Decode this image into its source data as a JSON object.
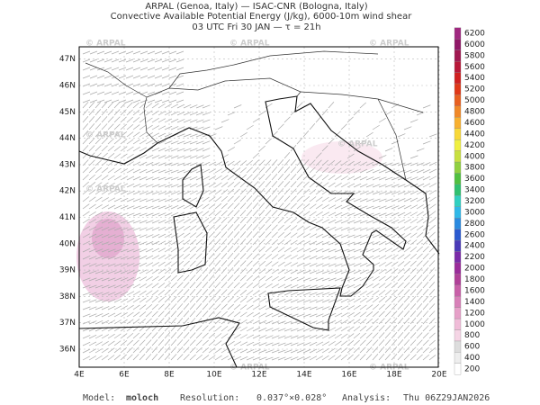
{
  "header": {
    "line1": "ARPAL (Genoa, Italy)  —  ISAC-CNR (Bologna, Italy)",
    "line2": "Convective Available Potential Energy (J/kg), 6000-10m wind shear",
    "line3": "03 UTC Fri 30 JAN  —  τ = 21h"
  },
  "watermark": "© ARPAL",
  "map": {
    "lat_labels": [
      "36N",
      "37N",
      "38N",
      "39N",
      "40N",
      "41N",
      "42N",
      "43N",
      "44N",
      "45N",
      "46N",
      "47N"
    ],
    "lon_labels": [
      "4E",
      "6E",
      "8E",
      "10E",
      "12E",
      "14E",
      "16E",
      "18E",
      "20E"
    ]
  },
  "colorbar": {
    "levels": [
      200,
      400,
      600,
      800,
      1000,
      1200,
      1400,
      1600,
      1800,
      2000,
      2200,
      2400,
      2600,
      2800,
      3000,
      3200,
      3400,
      3600,
      3800,
      4000,
      4200,
      4400,
      4600,
      4800,
      5000,
      5200,
      5400,
      5600,
      5800,
      6000,
      6200
    ],
    "colors": [
      "#ffffff",
      "#eeeeee",
      "#dddddd",
      "#f5d5e5",
      "#f0bcd8",
      "#e6a0c8",
      "#d880b8",
      "#c860a8",
      "#b04098",
      "#9a2c9a",
      "#7a2aa8",
      "#4a3ab8",
      "#2a5ad0",
      "#2a8ae0",
      "#30b8e8",
      "#30d0c0",
      "#30c070",
      "#50c040",
      "#90d040",
      "#c8e040",
      "#f0f040",
      "#f8d838",
      "#f8b030",
      "#f08828",
      "#e86020",
      "#e03818",
      "#d02020",
      "#b81838",
      "#a01850",
      "#901868",
      "#a02880"
    ]
  },
  "footer": {
    "model_label": "Model:",
    "model": "moloch",
    "resolution_label": "Resolution:",
    "resolution": "0.037°×0.028°",
    "analysis_label": "Analysis:",
    "analysis": "Thu 06Z29JAN2026"
  }
}
